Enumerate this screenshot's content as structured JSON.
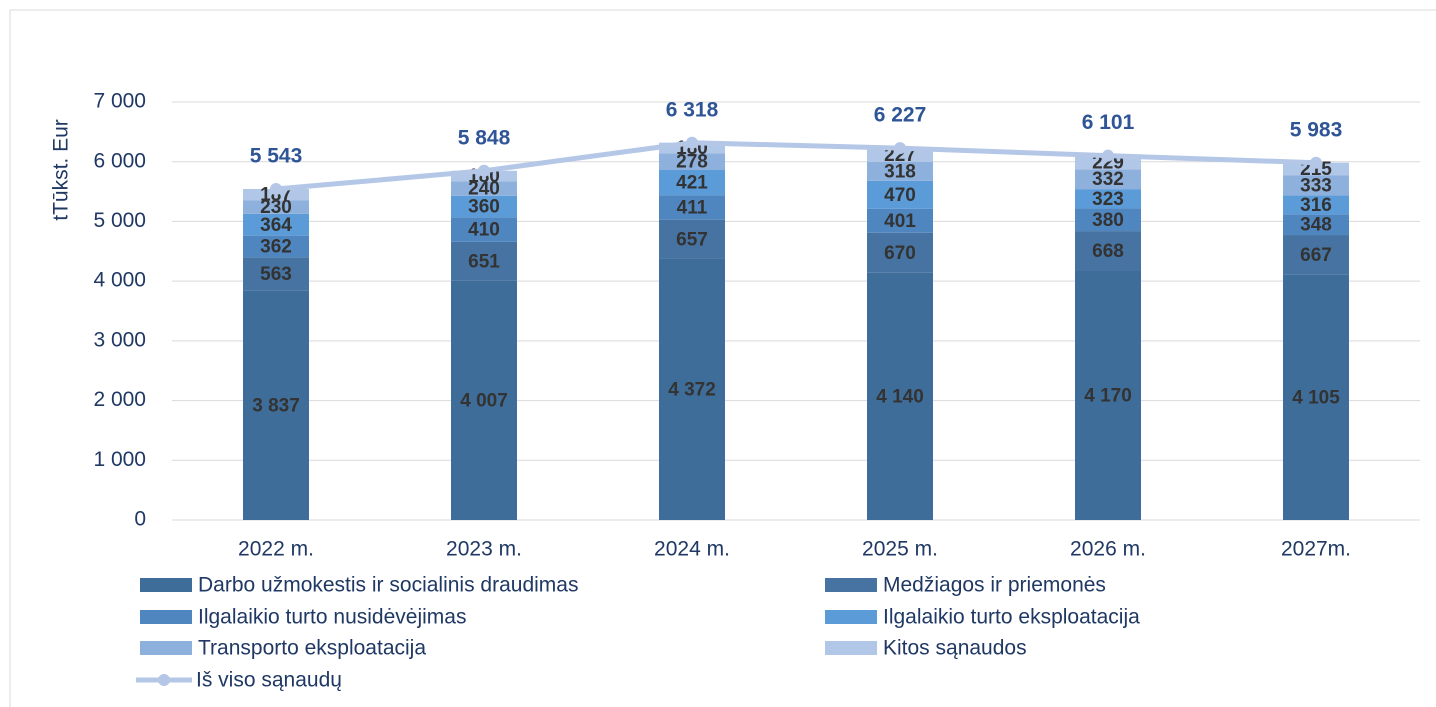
{
  "chart_data": {
    "type": "bar",
    "stacked": true,
    "y_label": "tTūkst. Eur",
    "categories": [
      "2022 m.",
      "2023 m.",
      "2024 m.",
      "2025 m.",
      "2026 m.",
      "2027m."
    ],
    "ylim": [
      0,
      7000
    ],
    "yticks": [
      0,
      {
        "value": 1000,
        "label": "1 000"
      },
      {
        "value": 2000,
        "label": "2 000"
      },
      {
        "value": 3000,
        "label": "3 000"
      },
      {
        "value": 4000,
        "label": "4 000"
      },
      {
        "value": 5000,
        "label": "5 000"
      },
      {
        "value": 6000,
        "label": "6 000"
      },
      {
        "value": 7000,
        "label": "7 000"
      }
    ],
    "grid": true,
    "series": [
      {
        "name": "Darbo užmokestis ir socialinis draudimas",
        "color": "#3f6d99",
        "values": [
          3837,
          4007,
          4372,
          4140,
          4170,
          4105
        ],
        "value_labels": [
          "3 837",
          "4 007",
          "4 372",
          "4 140",
          "4 170",
          "4 105"
        ]
      },
      {
        "name": "Medžiagos ir priemonės",
        "color": "#4673a2",
        "values": [
          563,
          651,
          657,
          670,
          668,
          667
        ]
      },
      {
        "name": "Ilgalaikio turto nusidėvėjimas",
        "color": "#4f86c0",
        "values": [
          362,
          410,
          411,
          401,
          380,
          348
        ]
      },
      {
        "name": "Ilgalaikio turto eksploatacija",
        "color": "#5b9bd8",
        "values": [
          364,
          360,
          421,
          470,
          323,
          316
        ]
      },
      {
        "name": "Transporto eksploatacija",
        "color": "#8eb0dc",
        "values": [
          230,
          240,
          278,
          318,
          332,
          333
        ]
      },
      {
        "name": "Kitos sąnaudos",
        "color": "#b0c7e8",
        "values": [
          187,
          180,
          180,
          227,
          229,
          215
        ]
      },
      {
        "name": "Iš viso sąnaudų",
        "type": "line",
        "color": "#b4c7e7",
        "values": [
          5543,
          5848,
          6318,
          6227,
          6101,
          5983
        ],
        "value_labels": [
          "5 543",
          "5 848",
          "6 318",
          "6 227",
          "6 101",
          "5 983"
        ]
      }
    ]
  }
}
